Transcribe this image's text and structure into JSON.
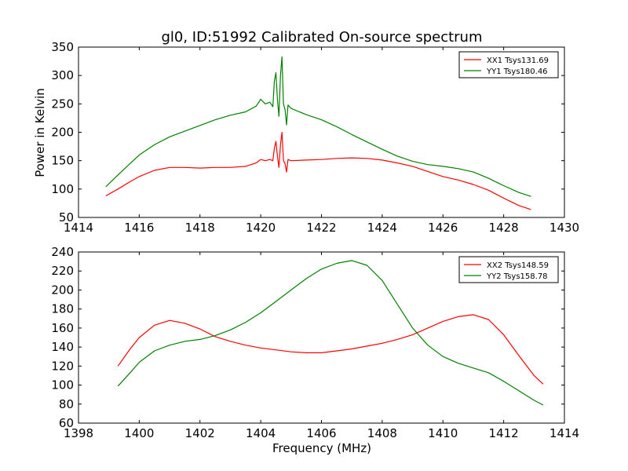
{
  "title": "gl0, ID:51992 Calibrated On-source spectrum",
  "ylabel": "Power in Kelvin",
  "xlabel": "Frequency (MHz)",
  "chart_data": [
    {
      "type": "line",
      "title": "gl0, ID:51992 Calibrated On-source spectrum",
      "xlabel": "",
      "ylabel": "Power in Kelvin",
      "xlim": [
        1414,
        1430
      ],
      "ylim": [
        50,
        350
      ],
      "xticks": [
        1414,
        1416,
        1418,
        1420,
        1422,
        1424,
        1426,
        1428,
        1430
      ],
      "yticks": [
        50,
        100,
        150,
        200,
        250,
        300,
        350
      ],
      "legend_position": "top-right",
      "grid": false,
      "series": [
        {
          "name": "XX1 Tsys131.69",
          "color": "#ff0000",
          "x": [
            1414.9,
            1415.3,
            1415.7,
            1416.0,
            1416.5,
            1417.0,
            1417.5,
            1418.0,
            1418.5,
            1419.0,
            1419.5,
            1419.85,
            1420.0,
            1420.15,
            1420.3,
            1420.4,
            1420.45,
            1420.5,
            1420.55,
            1420.6,
            1420.65,
            1420.7,
            1420.75,
            1420.8,
            1420.85,
            1420.9,
            1421.0,
            1421.5,
            1422.0,
            1422.5,
            1423.0,
            1423.5,
            1424.0,
            1424.5,
            1425.0,
            1425.5,
            1426.0,
            1426.5,
            1427.0,
            1427.5,
            1428.0,
            1428.5,
            1428.9
          ],
          "y": [
            88,
            100,
            113,
            122,
            133,
            138,
            138,
            137,
            138,
            138,
            140,
            146,
            152,
            150,
            152,
            150,
            172,
            184,
            158,
            138,
            178,
            200,
            150,
            145,
            130,
            152,
            150,
            151,
            152,
            154,
            155,
            154,
            151,
            146,
            140,
            131,
            122,
            116,
            108,
            98,
            84,
            71,
            64
          ]
        },
        {
          "name": "YY1 Tsys180.46",
          "color": "#008000",
          "x": [
            1414.9,
            1415.3,
            1415.7,
            1416.0,
            1416.5,
            1417.0,
            1417.5,
            1418.0,
            1418.5,
            1419.0,
            1419.5,
            1419.85,
            1420.0,
            1420.15,
            1420.3,
            1420.4,
            1420.45,
            1420.5,
            1420.55,
            1420.6,
            1420.65,
            1420.7,
            1420.75,
            1420.8,
            1420.85,
            1420.9,
            1421.0,
            1421.5,
            1422.0,
            1422.5,
            1423.0,
            1423.5,
            1424.0,
            1424.5,
            1425.0,
            1425.5,
            1426.0,
            1426.5,
            1427.0,
            1427.5,
            1428.0,
            1428.5,
            1428.9
          ],
          "y": [
            104,
            125,
            145,
            160,
            178,
            192,
            202,
            212,
            222,
            230,
            236,
            246,
            258,
            250,
            253,
            245,
            290,
            305,
            258,
            228,
            300,
            333,
            250,
            240,
            213,
            248,
            242,
            231,
            222,
            210,
            196,
            183,
            170,
            158,
            149,
            143,
            140,
            136,
            130,
            119,
            106,
            94,
            87
          ]
        }
      ]
    },
    {
      "type": "line",
      "title": "",
      "xlabel": "Frequency (MHz)",
      "ylabel": "",
      "xlim": [
        1398,
        1414
      ],
      "ylim": [
        60,
        240
      ],
      "xticks": [
        1398,
        1400,
        1402,
        1404,
        1406,
        1408,
        1410,
        1412,
        1414
      ],
      "yticks": [
        60,
        80,
        100,
        120,
        140,
        160,
        180,
        200,
        220,
        240
      ],
      "legend_position": "top-right",
      "grid": false,
      "series": [
        {
          "name": "XX2 Tsys148.59",
          "color": "#ff0000",
          "x": [
            1399.3,
            1399.7,
            1400.0,
            1400.5,
            1401.0,
            1401.5,
            1402.0,
            1402.5,
            1403.0,
            1403.5,
            1404.0,
            1404.5,
            1405.0,
            1405.5,
            1406.0,
            1406.5,
            1407.0,
            1407.5,
            1408.0,
            1408.5,
            1409.0,
            1409.5,
            1410.0,
            1410.5,
            1411.0,
            1411.5,
            1412.0,
            1412.5,
            1413.0,
            1413.3
          ],
          "y": [
            120,
            138,
            150,
            163,
            168,
            165,
            159,
            151,
            146,
            142,
            139,
            137,
            135,
            134,
            134,
            136,
            138,
            141,
            144,
            148,
            153,
            160,
            167,
            172,
            174,
            169,
            153,
            131,
            110,
            101
          ]
        },
        {
          "name": "YY2 Tsys158.78",
          "color": "#008000",
          "x": [
            1399.3,
            1399.7,
            1400.0,
            1400.5,
            1401.0,
            1401.5,
            1402.0,
            1402.5,
            1403.0,
            1403.5,
            1404.0,
            1404.5,
            1405.0,
            1405.5,
            1406.0,
            1406.5,
            1407.0,
            1407.5,
            1408.0,
            1408.5,
            1409.0,
            1409.5,
            1410.0,
            1410.5,
            1411.0,
            1411.5,
            1412.0,
            1412.5,
            1413.0,
            1413.3
          ],
          "y": [
            99,
            113,
            124,
            136,
            142,
            146,
            148,
            152,
            158,
            166,
            176,
            188,
            200,
            212,
            222,
            228,
            231,
            226,
            210,
            185,
            160,
            142,
            130,
            123,
            118,
            113,
            104,
            94,
            84,
            79
          ]
        }
      ]
    }
  ]
}
